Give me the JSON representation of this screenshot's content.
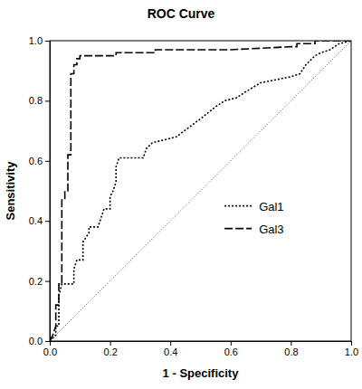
{
  "chart_data": {
    "type": "line",
    "title": "ROC Curve",
    "x_label": "1 - Specificity",
    "y_label": "Sensitivity",
    "xlim": [
      0,
      1
    ],
    "ylim": [
      0,
      1
    ],
    "xticks": [
      {
        "value": 0,
        "label": "0.0"
      },
      {
        "value": 0.2,
        "label": "0.2"
      },
      {
        "value": 0.4,
        "label": "0.4"
      },
      {
        "value": 0.6,
        "label": "0.6"
      },
      {
        "value": 0.8,
        "label": "0.8"
      },
      {
        "value": 1,
        "label": "1.0"
      }
    ],
    "yticks": [
      {
        "value": 0,
        "label": "0.0"
      },
      {
        "value": 0.2,
        "label": "0.2"
      },
      {
        "value": 0.4,
        "label": "0.4"
      },
      {
        "value": 0.6,
        "label": "0.6"
      },
      {
        "value": 0.8,
        "label": "0.8"
      },
      {
        "value": 1,
        "label": "1.0"
      }
    ],
    "grid": false,
    "legend": "right",
    "series": [
      {
        "name": "Gal1",
        "color": "#000000",
        "line_style": "dotted",
        "x": [
          0,
          0.02,
          0.02,
          0.03,
          0.03,
          0.04,
          0.08,
          0.08,
          0.09,
          0.11,
          0.11,
          0.13,
          0.13,
          0.16,
          0.17,
          0.18,
          0.2,
          0.2,
          0.21,
          0.22,
          0.22,
          0.23,
          0.31,
          0.32,
          0.34,
          0.38,
          0.42,
          0.46,
          0.5,
          0.55,
          0.58,
          0.62,
          0.65,
          0.7,
          0.75,
          0.8,
          0.83,
          0.85,
          0.88,
          0.9,
          0.93,
          0.96,
          1
        ],
        "values": [
          0,
          0.02,
          0.05,
          0.05,
          0.15,
          0.19,
          0.19,
          0.24,
          0.27,
          0.27,
          0.33,
          0.36,
          0.38,
          0.38,
          0.41,
          0.44,
          0.44,
          0.48,
          0.5,
          0.53,
          0.58,
          0.61,
          0.61,
          0.64,
          0.66,
          0.67,
          0.68,
          0.71,
          0.74,
          0.78,
          0.8,
          0.81,
          0.83,
          0.86,
          0.87,
          0.88,
          0.89,
          0.92,
          0.95,
          0.96,
          0.97,
          0.99,
          1
        ]
      },
      {
        "name": "Gal3",
        "color": "#000000",
        "line_style": "dashed",
        "x": [
          0,
          0.01,
          0.02,
          0.02,
          0.03,
          0.03,
          0.04,
          0.04,
          0.05,
          0.05,
          0.06,
          0.06,
          0.07,
          0.07,
          0.08,
          0.08,
          0.09,
          0.09,
          0.1,
          0.1,
          0.22,
          0.22,
          0.35,
          0.35,
          0.6,
          0.8,
          0.82,
          0.82,
          0.88,
          0.88,
          1
        ],
        "values": [
          0,
          0.02,
          0.05,
          0.12,
          0.12,
          0.19,
          0.19,
          0.47,
          0.47,
          0.5,
          0.5,
          0.62,
          0.62,
          0.89,
          0.89,
          0.92,
          0.92,
          0.94,
          0.94,
          0.95,
          0.95,
          0.96,
          0.96,
          0.97,
          0.97,
          0.98,
          0.98,
          0.99,
          0.99,
          1,
          1
        ]
      }
    ]
  }
}
